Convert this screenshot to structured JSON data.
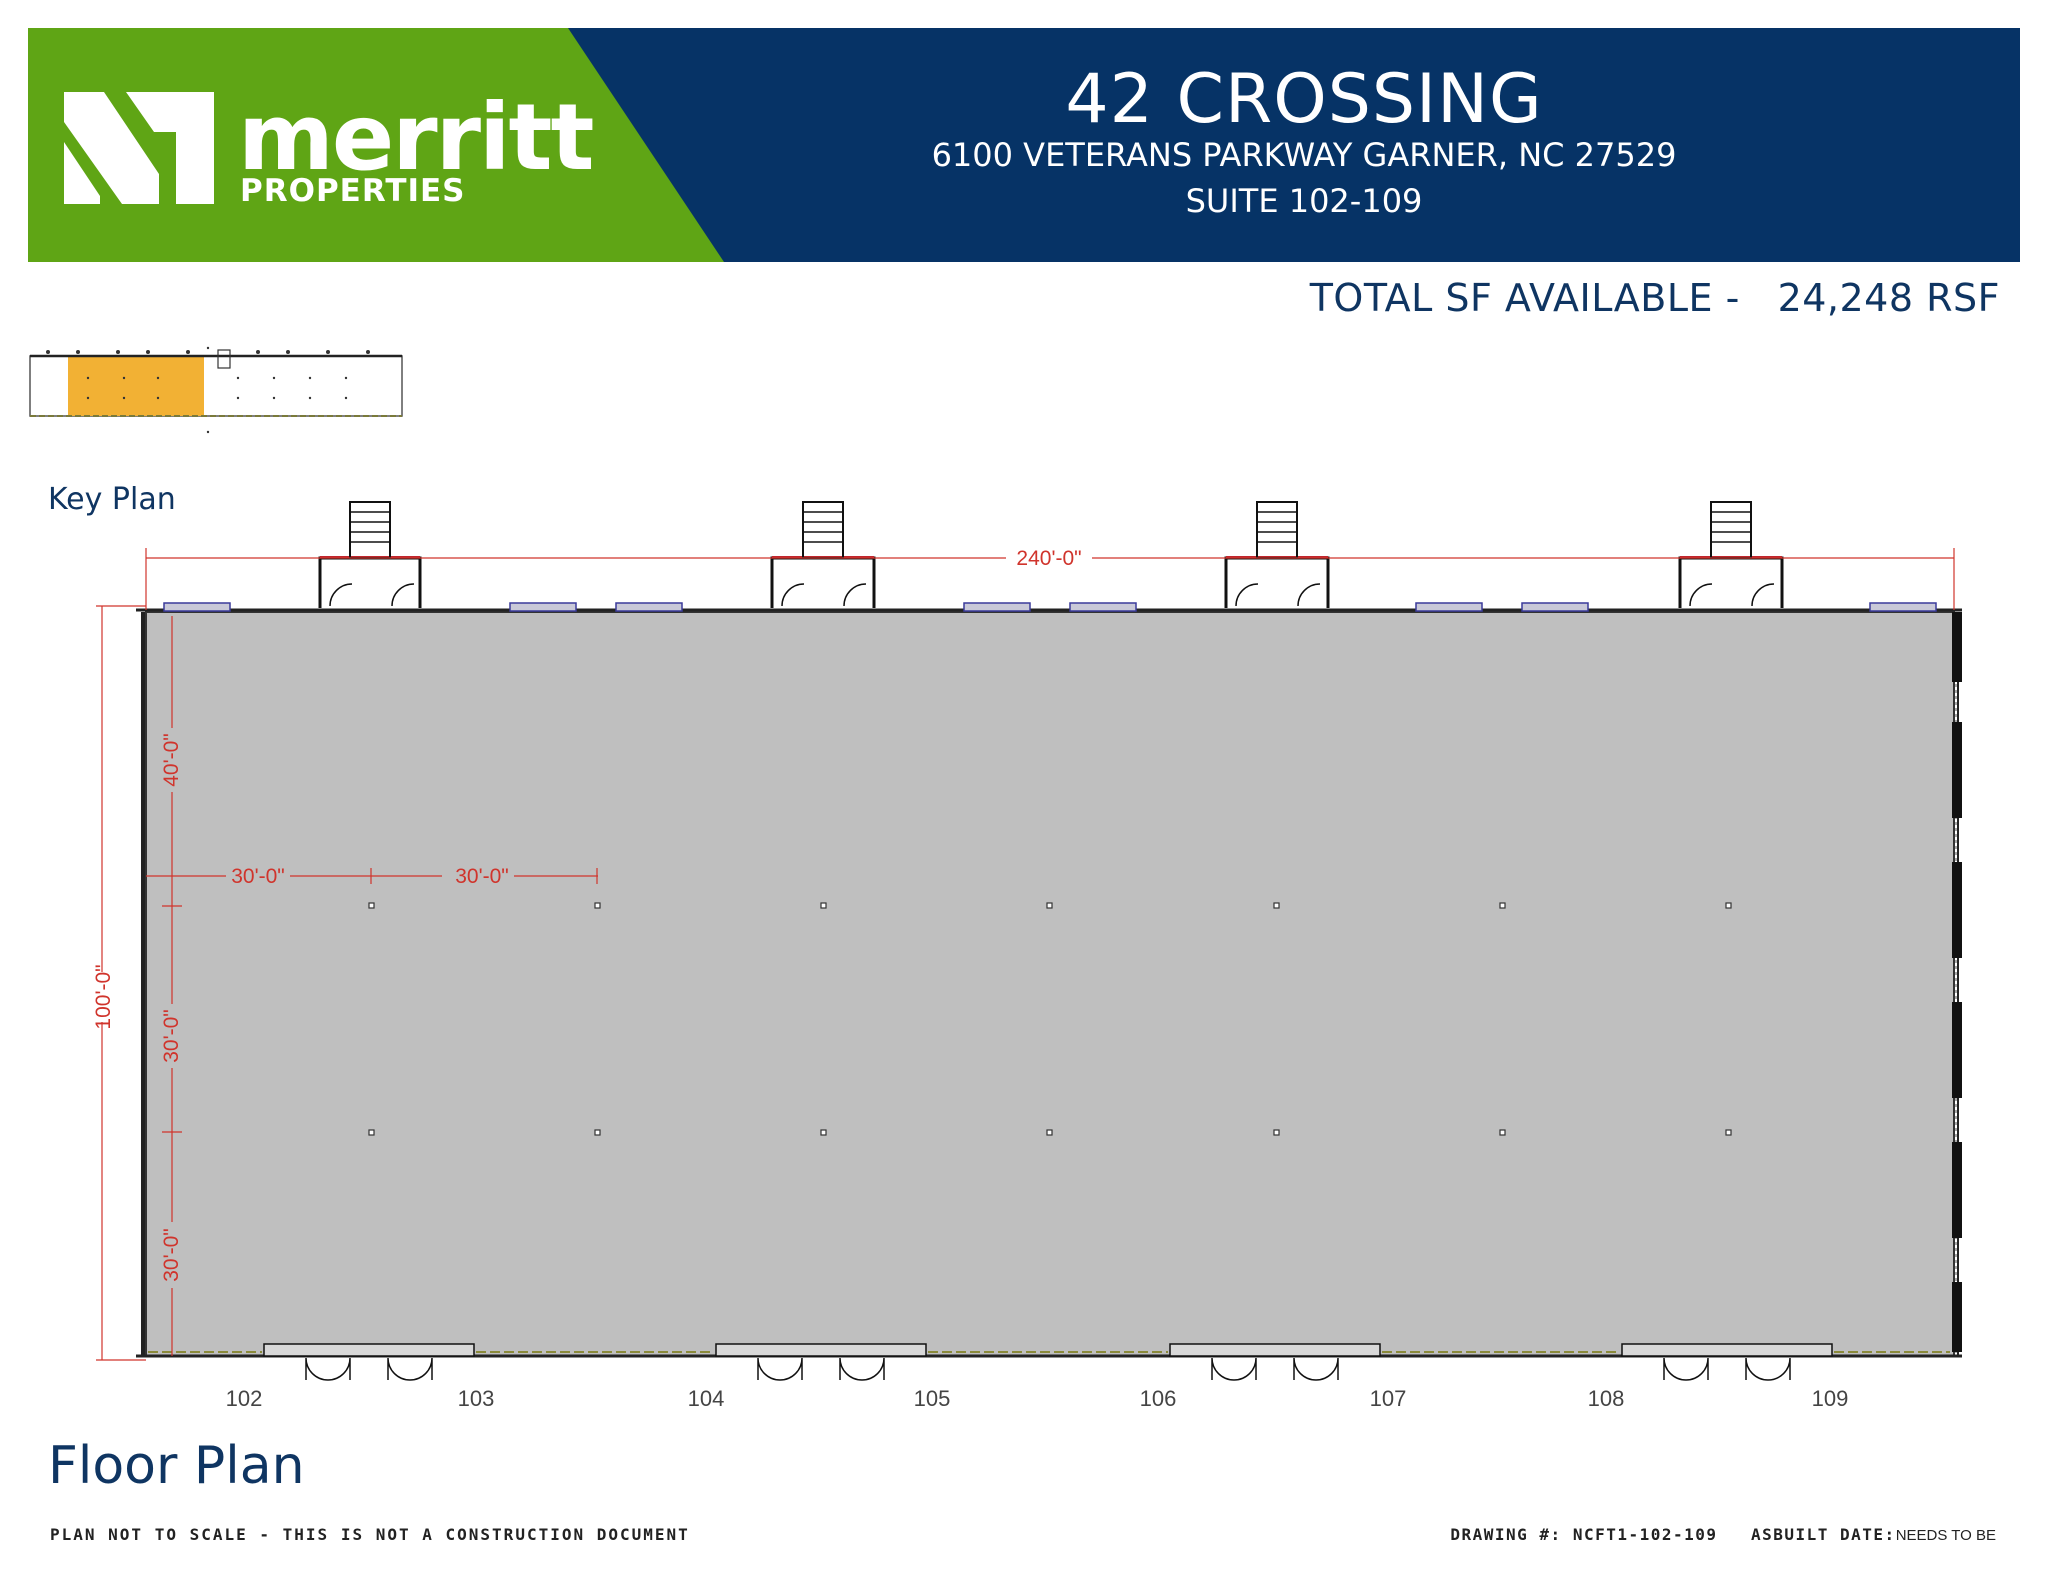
{
  "header": {
    "title": "42 CROSSING",
    "address": "6100 VETERANS PARKWAY GARNER, NC 27529",
    "suite": "SUITE 102-109",
    "logo_word": "merritt",
    "logo_sub": "PROPERTIES",
    "colors": {
      "green": "#5fa515",
      "navy": "#063366"
    }
  },
  "summary": {
    "total_label": "TOTAL SF AVAILABLE -",
    "total_value": "24,248 RSF"
  },
  "labels": {
    "key_plan": "Key Plan",
    "floor_plan": "Floor Plan"
  },
  "plan": {
    "overall_width": "240'-0\"",
    "overall_depth": "100'-0\"",
    "bay_dims": [
      "30'-0\"",
      "30'-0\""
    ],
    "depth_dims": [
      "40'-0\"",
      "30'-0\"",
      "30'-0\""
    ],
    "suites": [
      "102",
      "103",
      "104",
      "105",
      "106",
      "107",
      "108",
      "109"
    ],
    "colors": {
      "floor": "#bfbfbf",
      "dimension": "#d0342c",
      "highlight": "#f2b134"
    }
  },
  "footer": {
    "disclaimer": "PLAN NOT TO SCALE - THIS IS NOT A CONSTRUCTION DOCUMENT",
    "drawing_label": "DRAWING #:",
    "drawing_number": "NCFT1-102-109",
    "asbuilt_label": "ASBUILT DATE:",
    "asbuilt_value": "NEEDS TO BE"
  }
}
